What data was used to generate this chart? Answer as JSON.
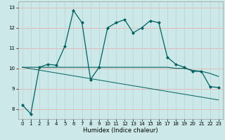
{
  "title": "",
  "xlabel": "Humidex (Indice chaleur)",
  "bg_color": "#cce8e8",
  "grid_color_h": "#e8b0b0",
  "grid_color_v": "#b8d8d8",
  "line_color": "#006060",
  "xlim": [
    -0.5,
    23.5
  ],
  "ylim": [
    7.5,
    13.3
  ],
  "yticks": [
    8,
    9,
    10,
    11,
    12,
    13
  ],
  "xticks": [
    0,
    1,
    2,
    3,
    4,
    5,
    6,
    7,
    8,
    9,
    10,
    11,
    12,
    13,
    14,
    15,
    16,
    17,
    18,
    19,
    20,
    21,
    22,
    23
  ],
  "x": [
    0,
    1,
    2,
    3,
    4,
    5,
    6,
    7,
    8,
    9,
    10,
    11,
    12,
    13,
    14,
    15,
    16,
    17,
    18,
    19,
    20,
    21,
    22,
    23
  ],
  "y_main": [
    8.2,
    7.75,
    10.05,
    10.2,
    10.15,
    11.1,
    12.85,
    12.25,
    9.45,
    10.05,
    12.0,
    12.25,
    12.4,
    11.75,
    12.0,
    12.35,
    12.25,
    10.55,
    10.2,
    10.05,
    9.85,
    9.85,
    9.1,
    9.05
  ],
  "y_mean": [
    10.05,
    10.05,
    10.05,
    10.05,
    10.05,
    10.05,
    10.05,
    10.05,
    10.05,
    10.05,
    10.05,
    10.05,
    10.05,
    10.05,
    10.05,
    10.05,
    10.05,
    10.05,
    10.0,
    10.0,
    9.9,
    9.85,
    9.75,
    9.6
  ],
  "y_trend": [
    10.05,
    9.98,
    9.91,
    9.84,
    9.77,
    9.7,
    9.63,
    9.56,
    9.49,
    9.42,
    9.35,
    9.28,
    9.21,
    9.14,
    9.07,
    9.0,
    8.93,
    8.86,
    8.79,
    8.72,
    8.65,
    8.58,
    8.51,
    8.44
  ]
}
